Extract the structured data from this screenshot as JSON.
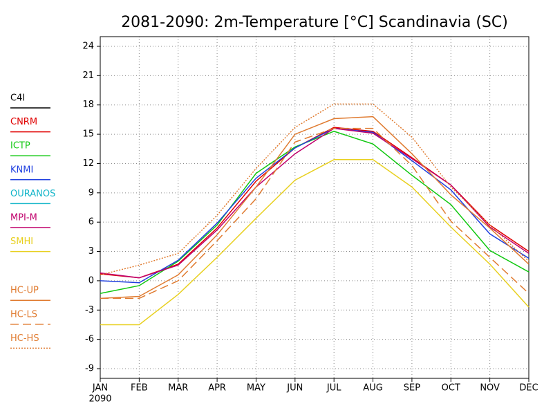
{
  "chart_data": {
    "type": "line",
    "title": "2081-2090: 2m-Temperature [°C] Scandinavia (SC)",
    "categories": [
      "JAN",
      "FEB",
      "MAR",
      "APR",
      "MAY",
      "JUN",
      "JUL",
      "AUG",
      "SEP",
      "OCT",
      "NOV",
      "DEC"
    ],
    "year_label": "2090",
    "ylim": [
      -9,
      24
    ],
    "yticks": [
      -9,
      -6,
      -3,
      0,
      3,
      6,
      9,
      12,
      15,
      18,
      21,
      24
    ],
    "grid": true,
    "series": [
      {
        "name": "C4I",
        "color": "#000000",
        "line_style": "solid",
        "values": [
          null,
          null,
          null,
          null,
          null,
          null,
          null,
          null,
          null,
          null,
          null,
          null
        ]
      },
      {
        "name": "CNRM",
        "color": "#e00000",
        "line_style": "solid",
        "values": [
          0.7,
          0.3,
          1.7,
          5.4,
          10.2,
          13.6,
          15.7,
          15.3,
          12.6,
          9.8,
          5.7,
          3.0
        ]
      },
      {
        "name": "ICTP",
        "color": "#10c810",
        "line_style": "solid",
        "values": [
          -1.3,
          -0.5,
          2.0,
          5.7,
          11.0,
          13.7,
          15.3,
          14.0,
          10.8,
          7.8,
          3.1,
          0.9
        ]
      },
      {
        "name": "KNMI",
        "color": "#2040e0",
        "line_style": "solid",
        "values": [
          0.0,
          -0.2,
          2.1,
          5.9,
          10.5,
          13.6,
          15.6,
          15.2,
          12.3,
          9.3,
          4.8,
          2.3
        ]
      },
      {
        "name": "OURANOS",
        "color": "#10b4c8",
        "line_style": "solid",
        "values": [
          null,
          null,
          null,
          null,
          null,
          null,
          null,
          null,
          null,
          null,
          null,
          null
        ]
      },
      {
        "name": "MPI-M",
        "color": "#c0006c",
        "line_style": "solid",
        "values": [
          0.8,
          0.3,
          1.6,
          5.2,
          9.6,
          13.0,
          15.6,
          15.1,
          12.5,
          9.8,
          5.5,
          2.8
        ]
      },
      {
        "name": "SMHI",
        "color": "#e8d020",
        "line_style": "solid",
        "values": [
          -4.5,
          -4.5,
          -1.4,
          2.4,
          6.4,
          10.3,
          12.4,
          12.4,
          9.6,
          5.5,
          1.7,
          -2.7
        ]
      },
      {
        "name": "HC-UP",
        "color": "#e07b30",
        "line_style": "solid",
        "values": [
          -1.8,
          -1.6,
          0.6,
          4.7,
          9.6,
          15.0,
          16.6,
          16.8,
          13.0,
          8.8,
          5.4,
          1.7
        ]
      },
      {
        "name": "HC-LS",
        "color": "#e07b30",
        "line_style": "dashed",
        "values": [
          -1.8,
          -1.8,
          0.0,
          4.1,
          8.4,
          14.2,
          15.6,
          15.6,
          11.8,
          6.1,
          2.4,
          -1.3
        ]
      },
      {
        "name": "HC-HS",
        "color": "#e07b30",
        "line_style": "dotted",
        "values": [
          0.6,
          1.6,
          2.8,
          6.7,
          11.5,
          15.7,
          18.1,
          18.1,
          14.7,
          9.6,
          5.7,
          2.0
        ]
      }
    ]
  }
}
